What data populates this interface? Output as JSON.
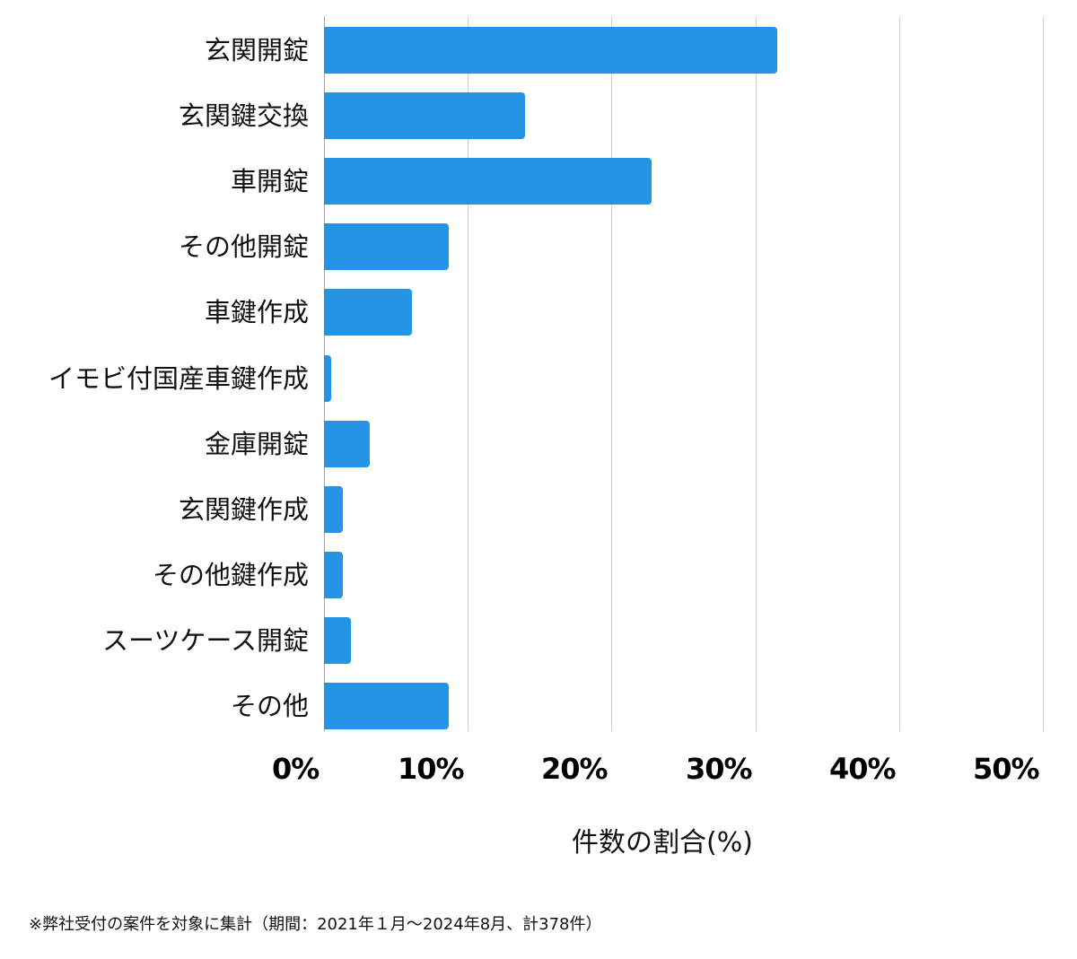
{
  "chart_data": {
    "type": "bar",
    "orientation": "horizontal",
    "title": "",
    "categories": [
      "玄関開錠",
      "玄関鍵交換",
      "車開錠",
      "その他開錠",
      "車鍵作成",
      "イモビ付国産車鍵作成",
      "金庫開錠",
      "玄関鍵作成",
      "その他鍵作成",
      "スーツケース開錠",
      "その他"
    ],
    "values": [
      31.5,
      14.0,
      22.8,
      8.7,
      6.1,
      0.5,
      3.2,
      1.3,
      1.3,
      1.9,
      8.7
    ],
    "series": [
      {
        "name": "件数の割合",
        "values": [
          31.5,
          14.0,
          22.8,
          8.7,
          6.1,
          0.5,
          3.2,
          1.3,
          1.3,
          1.9,
          8.7
        ],
        "color": "#2694e5"
      }
    ],
    "xlabel": "件数の割合(%)",
    "ylabel": "",
    "xlim": [
      0,
      50
    ],
    "xticks": [
      "0%",
      "10%",
      "20%",
      "30%",
      "40%",
      "50%"
    ],
    "grid": true,
    "legend": "none",
    "footnote": "※弊社受付の案件を対象に集計（期間：2021年１月〜2024年8月、計378件）"
  },
  "colors": {
    "bar": "#2694e5",
    "grid": "#d0d0d0",
    "axis": "#a8a8a8",
    "text": "#111111"
  }
}
